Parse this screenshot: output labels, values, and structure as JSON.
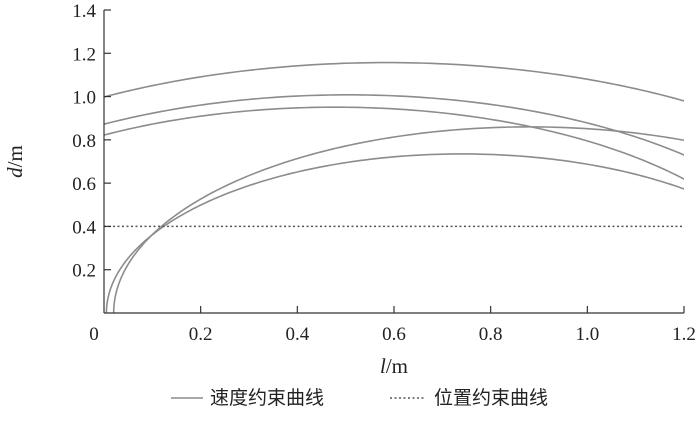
{
  "chart_data": {
    "type": "line",
    "xlabel": {
      "var": "l",
      "unit": "/m"
    },
    "ylabel": {
      "var": "d",
      "unit": "/m"
    },
    "xlim": [
      0,
      1.2
    ],
    "ylim": [
      0,
      1.4
    ],
    "xticks": [
      "0",
      "0.2",
      "0.4",
      "0.6",
      "0.8",
      "1.0",
      "1.2"
    ],
    "yticks": [
      "0.2",
      "0.4",
      "0.6",
      "0.8",
      "1.0",
      "1.2",
      "1.4"
    ],
    "grid": false,
    "legend_position": "bottom",
    "colors": {
      "speed": "#8c8c8c",
      "position": "#555555",
      "axis": "#333333"
    },
    "series": [
      {
        "name": "速度约束曲线",
        "style": "solid",
        "shape": "arc",
        "center": [
          0.585,
          0.0
        ],
        "radius": 1.157
      },
      {
        "name": "速度约束曲线",
        "style": "solid",
        "shape": "arc",
        "center": [
          0.505,
          0.0
        ],
        "radius": 1.008
      },
      {
        "name": "速度约束曲线",
        "style": "solid",
        "shape": "arc",
        "center": [
          0.478,
          0.0
        ],
        "radius": 0.951
      },
      {
        "name": "速度约束曲线",
        "style": "solid",
        "shape": "arc",
        "center": [
          0.74,
          0.0
        ],
        "radius": 0.735
      },
      {
        "name": "速度约束曲线",
        "style": "solid",
        "shape": "arc",
        "center": [
          0.88,
          0.0
        ],
        "radius": 0.86
      },
      {
        "name": "位置约束曲线",
        "style": "dotted",
        "shape": "hline",
        "y": 0.4
      }
    ],
    "legend": [
      {
        "label": "速度约束曲线",
        "style": "solid"
      },
      {
        "label": "位置约束曲线",
        "style": "dotted"
      }
    ]
  }
}
